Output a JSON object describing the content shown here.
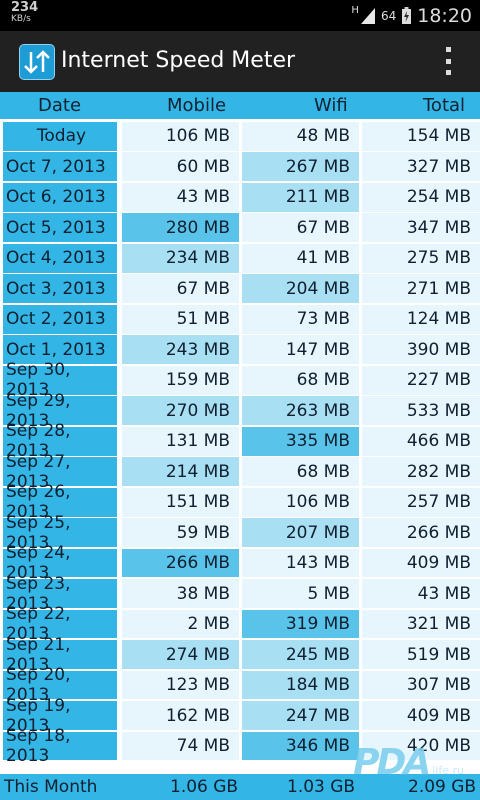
{
  "status_bar": {
    "speed_value": "234",
    "speed_unit": "KB/s",
    "network_letter": "H",
    "battery": "64",
    "time": "18:20"
  },
  "app": {
    "title": "Internet Speed Meter",
    "icon": "up-down-arrows-icon"
  },
  "table": {
    "headers": {
      "date": "Date",
      "mobile": "Mobile",
      "wifi": "Wifi",
      "total": "Total"
    },
    "rows": [
      {
        "date": "Today",
        "mobile": "106 MB",
        "wifi": "48 MB",
        "total": "154 MB"
      },
      {
        "date": "Oct 7, 2013",
        "mobile": "60 MB",
        "wifi": "267 MB",
        "total": "327 MB"
      },
      {
        "date": "Oct 6, 2013",
        "mobile": "43 MB",
        "wifi": "211 MB",
        "total": "254 MB"
      },
      {
        "date": "Oct 5, 2013",
        "mobile": "280 MB",
        "wifi": "67 MB",
        "total": "347 MB"
      },
      {
        "date": "Oct 4, 2013",
        "mobile": "234 MB",
        "wifi": "41 MB",
        "total": "275 MB"
      },
      {
        "date": "Oct 3, 2013",
        "mobile": "67 MB",
        "wifi": "204 MB",
        "total": "271 MB"
      },
      {
        "date": "Oct 2, 2013",
        "mobile": "51 MB",
        "wifi": "73 MB",
        "total": "124 MB"
      },
      {
        "date": "Oct 1, 2013",
        "mobile": "243 MB",
        "wifi": "147 MB",
        "total": "390 MB"
      },
      {
        "date": "Sep 30, 2013",
        "mobile": "159 MB",
        "wifi": "68 MB",
        "total": "227 MB"
      },
      {
        "date": "Sep 29, 2013",
        "mobile": "270 MB",
        "wifi": "263 MB",
        "total": "533 MB"
      },
      {
        "date": "Sep 28, 2013",
        "mobile": "131 MB",
        "wifi": "335 MB",
        "total": "466 MB"
      },
      {
        "date": "Sep 27, 2013",
        "mobile": "214 MB",
        "wifi": "68 MB",
        "total": "282 MB"
      },
      {
        "date": "Sep 26, 2013",
        "mobile": "151 MB",
        "wifi": "106 MB",
        "total": "257 MB"
      },
      {
        "date": "Sep 25, 2013",
        "mobile": "59 MB",
        "wifi": "207 MB",
        "total": "266 MB"
      },
      {
        "date": "Sep 24, 2013",
        "mobile": "266 MB",
        "wifi": "143 MB",
        "total": "409 MB"
      },
      {
        "date": "Sep 23, 2013",
        "mobile": "38 MB",
        "wifi": "5 MB",
        "total": "43 MB"
      },
      {
        "date": "Sep 22, 2013",
        "mobile": "2 MB",
        "wifi": "319 MB",
        "total": "321 MB"
      },
      {
        "date": "Sep 21, 2013",
        "mobile": "274 MB",
        "wifi": "245 MB",
        "total": "519 MB"
      },
      {
        "date": "Sep 20, 2013",
        "mobile": "123 MB",
        "wifi": "184 MB",
        "total": "307 MB"
      },
      {
        "date": "Sep 19, 2013",
        "mobile": "162 MB",
        "wifi": "247 MB",
        "total": "409 MB"
      },
      {
        "date": "Sep 18, 2013",
        "mobile": "74 MB",
        "wifi": "346 MB",
        "total": "420 MB"
      }
    ],
    "footer": {
      "label": "This Month",
      "mobile": "1.06 GB",
      "wifi": "1.03 GB",
      "total": "2.09 GB"
    }
  },
  "watermark": {
    "mark": "PDA",
    "sub": "life.ru"
  },
  "colors": {
    "accent": "#33b5e5",
    "actionbar": "#212121"
  }
}
